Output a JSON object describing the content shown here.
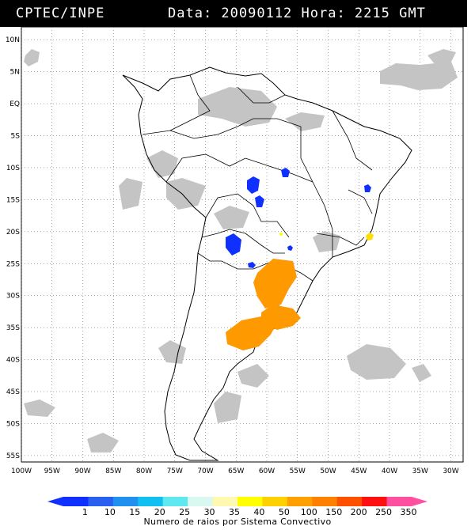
{
  "header": {
    "source": "CPTEC/INPE",
    "datetime": "Data: 20090112 Hora: 2215 GMT"
  },
  "map": {
    "lat_labels": [
      "10N",
      "5N",
      "EQ",
      "5S",
      "10S",
      "15S",
      "20S",
      "25S",
      "30S",
      "35S",
      "40S",
      "45S",
      "50S",
      "55S"
    ],
    "lon_labels": [
      "100W",
      "95W",
      "90W",
      "85W",
      "80W",
      "75W",
      "70W",
      "65W",
      "60W",
      "55W",
      "50W",
      "45W",
      "40W",
      "35W",
      "30W"
    ],
    "lat_range": [
      -56,
      12
    ],
    "lon_range": [
      -100,
      -28
    ],
    "grid": "dotted"
  },
  "colorbar": {
    "title": "Numero de raios por Sistema Convectivo",
    "ticks": [
      "1",
      "10",
      "15",
      "20",
      "25",
      "30",
      "35",
      "40",
      "50",
      "100",
      "150",
      "200",
      "250",
      "350"
    ],
    "colors": [
      "#1030ff",
      "#2a60f0",
      "#2090f0",
      "#10c0f0",
      "#60e8f0",
      "#d8f8f0",
      "#fff8b0",
      "#ffff00",
      "#ffd000",
      "#ffa000",
      "#ff8000",
      "#ff5000",
      "#ff1010",
      "#ff50a0"
    ]
  }
}
